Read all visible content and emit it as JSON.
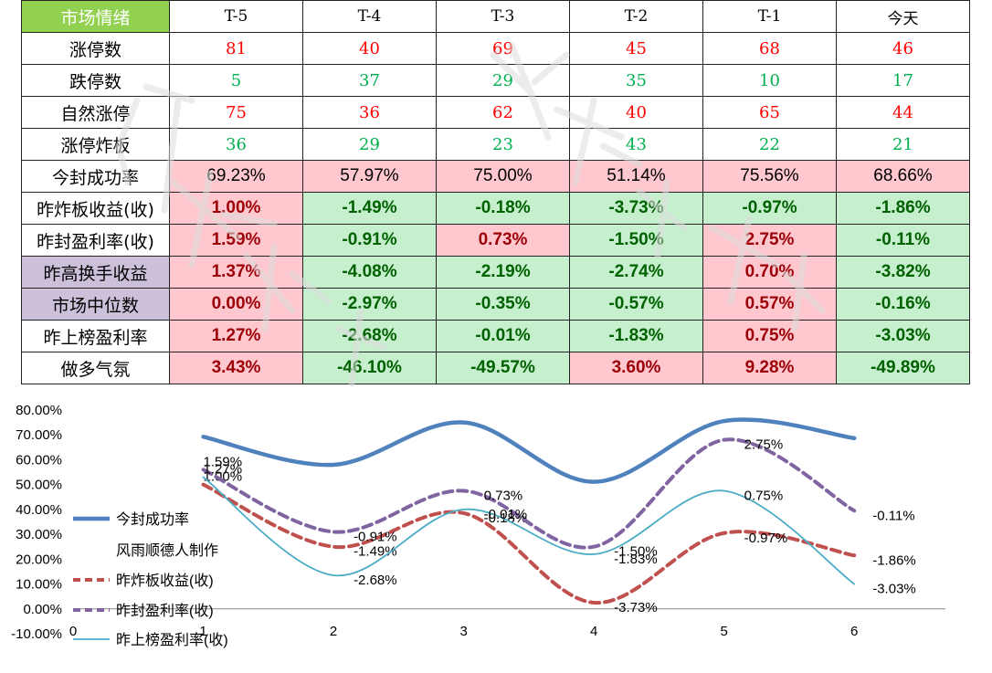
{
  "table": {
    "header": [
      "市场情绪",
      "T-5",
      "T-4",
      "T-3",
      "T-2",
      "T-1",
      "今天"
    ],
    "rows": [
      {
        "label": "涨停数",
        "values": [
          "81",
          "40",
          "69",
          "45",
          "68",
          "46"
        ],
        "label_style": "white",
        "value_style": "count-red"
      },
      {
        "label": "跌停数",
        "values": [
          "5",
          "37",
          "29",
          "35",
          "10",
          "17"
        ],
        "label_style": "white",
        "value_style": "count-green"
      },
      {
        "label": "自然涨停",
        "values": [
          "75",
          "36",
          "62",
          "40",
          "65",
          "44"
        ],
        "label_style": "white",
        "value_style": "count-red"
      },
      {
        "label": "涨停炸板",
        "values": [
          "36",
          "29",
          "23",
          "43",
          "22",
          "21"
        ],
        "label_style": "white",
        "value_style": "count-green"
      },
      {
        "label": "今封成功率",
        "values": [
          "69.23%",
          "57.97%",
          "75.00%",
          "51.14%",
          "75.56%",
          "68.66%"
        ],
        "label_style": "white",
        "value_style": "pct-plain"
      },
      {
        "label": "昨炸板收益(收)",
        "values": [
          "1.00%",
          "-1.49%",
          "-0.18%",
          "-3.73%",
          "-0.97%",
          "-1.86%"
        ],
        "label_style": "white",
        "value_style": "pct-bold"
      },
      {
        "label": "昨封盈利率(收)",
        "values": [
          "1.59%",
          "-0.91%",
          "0.73%",
          "-1.50%",
          "2.75%",
          "-0.11%"
        ],
        "label_style": "white",
        "value_style": "pct-bold"
      },
      {
        "label": "昨高换手收益",
        "values": [
          "1.37%",
          "-4.08%",
          "-2.19%",
          "-2.74%",
          "0.70%",
          "-3.82%"
        ],
        "label_style": "purple",
        "value_style": "pct-bold"
      },
      {
        "label": "市场中位数",
        "values": [
          "0.00%",
          "-2.97%",
          "-0.35%",
          "-0.57%",
          "0.57%",
          "-0.16%"
        ],
        "label_style": "purple",
        "value_style": "pct-bold"
      },
      {
        "label": "昨上榜盈利率",
        "values": [
          "1.27%",
          "-2.68%",
          "-0.01%",
          "-1.83%",
          "0.75%",
          "-3.03%"
        ],
        "label_style": "white",
        "value_style": "pct-bold"
      },
      {
        "label": "做多气氛",
        "values": [
          "3.43%",
          "-46.10%",
          "-49.57%",
          "3.60%",
          "9.28%",
          "-49.89%"
        ],
        "label_style": "white",
        "value_style": "pct-bold"
      }
    ]
  },
  "colors": {
    "header_bg": "#92d050",
    "purple_bg": "#ccc0da",
    "pos_bg": "#ffc7ce",
    "neg_bg": "#c6efce",
    "count_red": "#ff0000",
    "count_green": "#00b050",
    "pos_text": "#9c0006",
    "neg_text": "#006100"
  },
  "chart_data": {
    "type": "line",
    "x": [
      1,
      2,
      3,
      4,
      5,
      6
    ],
    "xlim": [
      0,
      6.7
    ],
    "ylim": [
      -0.1,
      0.8
    ],
    "x_ticks": [
      0,
      1,
      2,
      3,
      4,
      5,
      6
    ],
    "y_ticks": [
      -0.1,
      0,
      0.1,
      0.2,
      0.3,
      0.4,
      0.5,
      0.6,
      0.7,
      0.8
    ],
    "y_tick_labels": [
      "-10.00%",
      "0.00%",
      "10.00%",
      "20.00%",
      "30.00%",
      "40.00%",
      "50.00%",
      "60.00%",
      "70.00%",
      "80.00%"
    ],
    "legend_placement": "left",
    "credit_text": "风雨顺德人制作",
    "series": [
      {
        "name": "今封成功率",
        "values": [
          0.6923,
          0.5797,
          0.75,
          0.5114,
          0.7556,
          0.6866
        ],
        "color": "#4f81bd",
        "style": "solid-thick",
        "labels": []
      },
      {
        "name": "昨炸板收益(收)",
        "values": [
          0.5,
          0.25,
          0.385,
          0.025,
          0.305,
          0.215
        ],
        "color": "#c0504d",
        "style": "dashed",
        "labels": [
          "1.00%",
          "-1.49%",
          "-0.18%",
          "-3.73%",
          "-0.97%",
          "-1.86%"
        ]
      },
      {
        "name": "昨封盈利率(收)",
        "values": [
          0.56,
          0.31,
          0.475,
          0.25,
          0.68,
          0.395
        ],
        "color": "#8064a2",
        "style": "dashed",
        "labels": [
          "1.59%",
          "-0.91%",
          "0.73%",
          "-1.50%",
          "2.75%",
          "-0.11%"
        ]
      },
      {
        "name": "昨上榜盈利率(收)",
        "values": [
          0.53,
          0.135,
          0.4,
          0.22,
          0.475,
          0.1
        ],
        "color": "#4bacc6",
        "style": "solid-thin",
        "labels": [
          "1.27%",
          "-2.68%",
          "-0.01%",
          "-1.83%",
          "0.75%",
          "-3.03%"
        ]
      }
    ]
  }
}
